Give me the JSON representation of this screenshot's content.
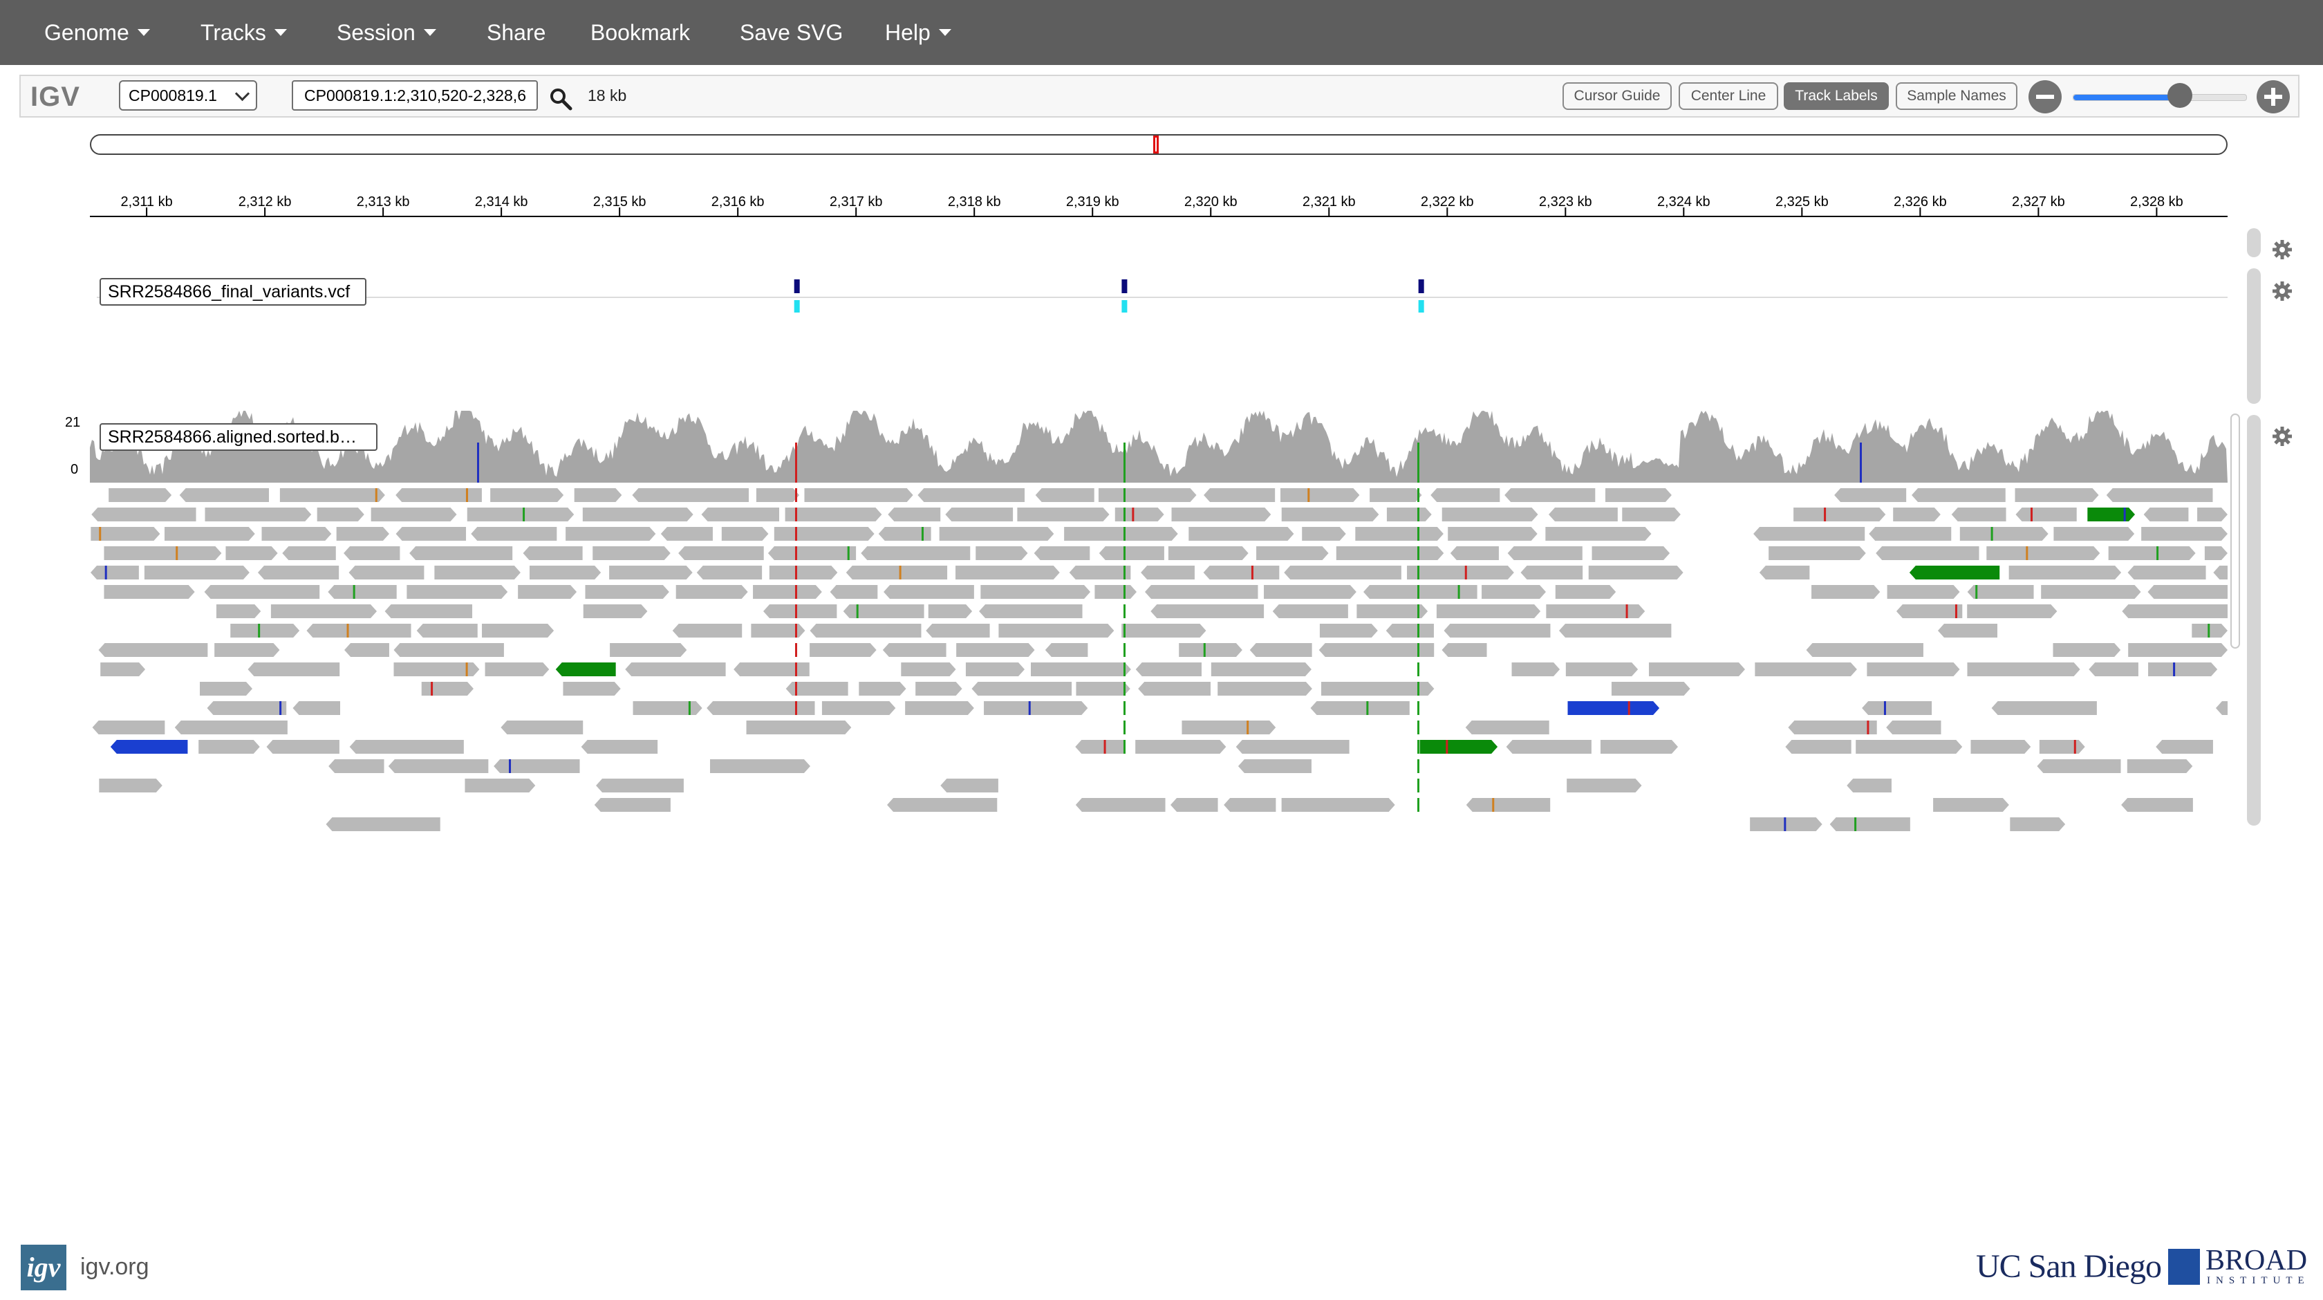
{
  "navbar": {
    "items": [
      {
        "label": "Genome",
        "dropdown": true
      },
      {
        "label": "Tracks",
        "dropdown": true
      },
      {
        "label": "Session",
        "dropdown": true
      },
      {
        "label": "Share",
        "dropdown": false
      },
      {
        "label": "Bookmark",
        "dropdown": false
      },
      {
        "label": "Save SVG",
        "dropdown": false
      },
      {
        "label": "Help",
        "dropdown": true
      }
    ]
  },
  "controls": {
    "logo": "IGV",
    "chromosome": "CP000819.1",
    "locus": "CP000819.1:2,310,520-2,328,6",
    "width": "18 kb",
    "buttons": [
      {
        "label": "Cursor Guide",
        "active": false
      },
      {
        "label": "Center Line",
        "active": false
      },
      {
        "label": "Track Labels",
        "active": true
      },
      {
        "label": "Sample Names",
        "active": false
      }
    ],
    "zoom_level_fraction": 0.62,
    "colors": {
      "accent": "#2d7ff9",
      "toggle_on": "#737373"
    }
  },
  "ruler": {
    "ticks": [
      "2,311 kb",
      "2,312 kb",
      "2,313 kb",
      "2,314 kb",
      "2,315 kb",
      "2,316 kb",
      "2,317 kb",
      "2,318 kb",
      "2,319 kb",
      "2,320 kb",
      "2,321 kb",
      "2,322 kb",
      "2,323 kb",
      "2,324 kb",
      "2,325 kb",
      "2,326 kb",
      "2,327 kb",
      "2,328 kb"
    ],
    "start_kb": 2310.52,
    "end_kb": 2328.6
  },
  "tracks": {
    "variants": {
      "name": "SRR2584866_final_variants.vcf",
      "positions_kb": [
        2316.5,
        2319.27,
        2321.78
      ]
    },
    "alignment": {
      "name": "SRR2584866.aligned.sorted.b…",
      "coverage_max": "21",
      "coverage_min": "0"
    }
  },
  "footer": {
    "logo_text": "igv",
    "site": "igv.org",
    "ucsd": "UC San Diego",
    "broad": "BROAD",
    "broad_sub": "INSTITUTE"
  }
}
